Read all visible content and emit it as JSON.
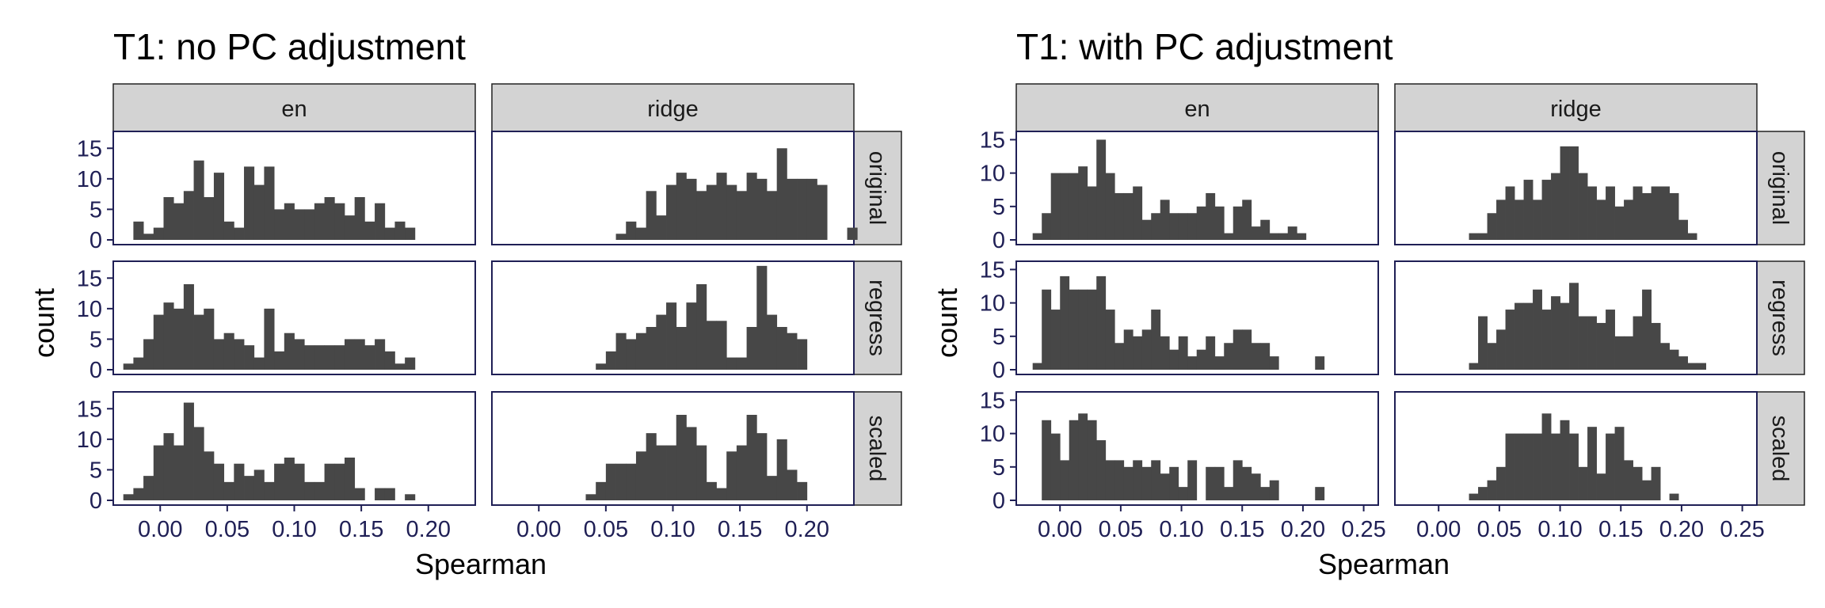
{
  "chart_data": [
    {
      "type": "histogram",
      "title": "T1: no PC adjustment",
      "xlabel": "Spearman",
      "ylabel": "count",
      "xlim": [
        -0.035,
        0.235
      ],
      "ylim": [
        0,
        17.5
      ],
      "bin_width": 0.0075,
      "x_ticks": [
        0.0,
        0.05,
        0.1,
        0.15,
        0.2
      ],
      "x_tick_labels": [
        "0.00",
        "0.05",
        "0.10",
        "0.15",
        "0.20"
      ],
      "y_ticks": [
        0,
        5,
        10,
        15
      ],
      "column_facets": [
        "en",
        "ridge"
      ],
      "row_facets": [
        "original",
        "regress",
        "scaled"
      ],
      "panels": [
        {
          "col": "en",
          "row": "original",
          "bin_start": -0.02,
          "counts": [
            3,
            1,
            2,
            7,
            6,
            8,
            13,
            7,
            11,
            3,
            2,
            12,
            9,
            12,
            5,
            6,
            5,
            5,
            6,
            7,
            6,
            4,
            7,
            3,
            6,
            2,
            3,
            2
          ]
        },
        {
          "col": "en",
          "row": "regress",
          "bin_start": -0.0275,
          "counts": [
            1,
            2,
            5,
            9,
            11,
            10,
            14,
            9,
            10,
            5,
            6,
            5,
            4,
            2,
            10,
            3,
            6,
            5,
            4,
            4,
            4,
            4,
            5,
            5,
            4,
            5,
            3,
            1,
            2
          ]
        },
        {
          "col": "en",
          "row": "scaled",
          "bin_start": -0.0275,
          "counts": [
            1,
            2,
            4,
            9,
            11,
            9,
            16,
            12,
            8,
            6,
            3,
            6,
            4,
            5,
            3,
            6,
            7,
            6,
            3,
            3,
            6,
            6,
            7,
            2,
            0,
            2,
            2,
            0,
            1
          ]
        },
        {
          "col": "ridge",
          "row": "original",
          "bin_start": 0.0575,
          "counts": [
            1,
            3,
            2,
            8,
            4,
            9,
            11,
            10,
            8,
            9,
            11,
            9,
            8,
            11,
            10,
            8,
            15,
            10,
            10,
            10,
            9,
            0,
            0,
            2
          ]
        },
        {
          "col": "ridge",
          "row": "regress",
          "bin_start": 0.0425,
          "counts": [
            1,
            3,
            6,
            5,
            6,
            7,
            9,
            11,
            7,
            11,
            14,
            8,
            8,
            2,
            2,
            7,
            17,
            9,
            7,
            6,
            5
          ]
        },
        {
          "col": "ridge",
          "row": "scaled",
          "bin_start": 0.035,
          "counts": [
            1,
            3,
            6,
            6,
            6,
            8,
            11,
            9,
            9,
            14,
            12,
            9,
            3,
            2,
            8,
            9,
            14,
            11,
            4,
            10,
            5,
            3
          ]
        }
      ]
    },
    {
      "type": "histogram",
      "title": "T1: with PC adjustment",
      "xlabel": "Spearman",
      "ylabel": "count",
      "xlim": [
        -0.036,
        0.262
      ],
      "ylim": [
        0,
        16
      ],
      "bin_width": 0.0075,
      "x_ticks": [
        0.0,
        0.05,
        0.1,
        0.15,
        0.2,
        0.25
      ],
      "x_tick_labels": [
        "0.00",
        "0.05",
        "0.10",
        "0.15",
        "0.20",
        "0.25"
      ],
      "y_ticks": [
        0,
        5,
        10,
        15
      ],
      "column_facets": [
        "en",
        "ridge"
      ],
      "row_facets": [
        "original",
        "regress",
        "scaled"
      ],
      "panels": [
        {
          "col": "en",
          "row": "original",
          "bin_start": -0.0225,
          "counts": [
            1,
            4,
            10,
            10,
            10,
            11,
            8,
            15,
            10,
            7,
            7,
            8,
            3,
            4,
            6,
            4,
            4,
            4,
            5,
            7,
            5,
            1,
            5,
            6,
            2,
            3,
            1,
            1,
            2,
            1
          ]
        },
        {
          "col": "en",
          "row": "regress",
          "bin_start": -0.0225,
          "counts": [
            1,
            12,
            9,
            14,
            12,
            12,
            12,
            14,
            9,
            4,
            6,
            5,
            6,
            9,
            5,
            3,
            5,
            2,
            3,
            5,
            2,
            4,
            6,
            6,
            4,
            4,
            2,
            0,
            0,
            0,
            0,
            2
          ]
        },
        {
          "col": "en",
          "row": "scaled",
          "bin_start": -0.015,
          "counts": [
            12,
            10,
            6,
            12,
            13,
            12,
            9,
            6,
            6,
            5,
            6,
            5,
            6,
            4,
            5,
            2,
            6,
            0,
            5,
            5,
            2,
            6,
            5,
            4,
            2,
            3,
            0,
            0,
            0,
            0,
            2
          ]
        },
        {
          "col": "ridge",
          "row": "original",
          "bin_start": 0.025,
          "counts": [
            1,
            1,
            4,
            6,
            8,
            6,
            9,
            6,
            9,
            10,
            14,
            14,
            10,
            8,
            6,
            8,
            5,
            6,
            8,
            7,
            8,
            8,
            7,
            3,
            1
          ]
        },
        {
          "col": "ridge",
          "row": "regress",
          "bin_start": 0.025,
          "counts": [
            1,
            8,
            4,
            6,
            9,
            10,
            10,
            12,
            9,
            11,
            10,
            13,
            8,
            8,
            7,
            9,
            5,
            5,
            8,
            12,
            7,
            4,
            3,
            2,
            1,
            1
          ]
        },
        {
          "col": "ridge",
          "row": "scaled",
          "bin_start": 0.025,
          "counts": [
            1,
            2,
            3,
            5,
            10,
            10,
            10,
            10,
            13,
            10,
            12,
            10,
            5,
            11,
            4,
            10,
            11,
            6,
            5,
            3,
            5,
            0,
            1
          ]
        }
      ]
    }
  ]
}
